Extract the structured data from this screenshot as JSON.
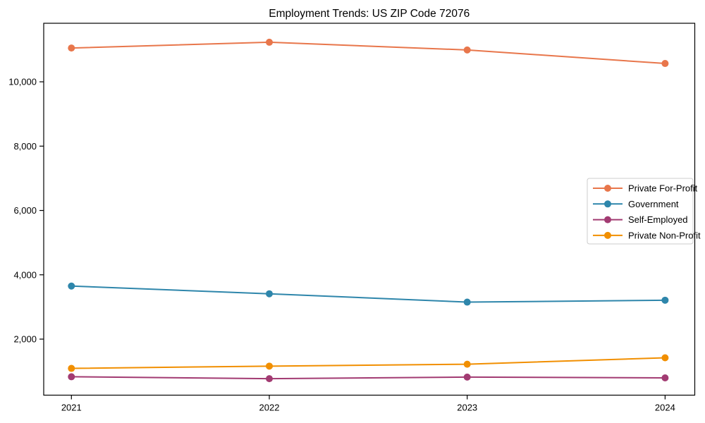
{
  "chart_data": {
    "type": "line",
    "title": "Employment Trends: US ZIP Code 72076",
    "x": [
      2021,
      2022,
      2023,
      2024
    ],
    "xtick_labels": [
      "2021",
      "2022",
      "2023",
      "2024"
    ],
    "yticks": [
      2000,
      4000,
      6000,
      8000,
      10000
    ],
    "ytick_labels": [
      "2,000",
      "4,000",
      "6,000",
      "8,000",
      "10,000"
    ],
    "xlim": [
      2020.86,
      2024.15
    ],
    "ylim": [
      258,
      11820
    ],
    "grid": false,
    "legend_position": "center-right",
    "xlabel": "",
    "ylabel": "",
    "axis_color": "#000000",
    "legend_border_color": "#cccccc",
    "series": [
      {
        "name": "Private For-Profit",
        "color": "#E8764B",
        "values": [
          11050,
          11230,
          10990,
          10570
        ]
      },
      {
        "name": "Government",
        "color": "#2E86AB",
        "values": [
          3650,
          3410,
          3150,
          3210
        ]
      },
      {
        "name": "Self-Employed",
        "color": "#A23B72",
        "values": [
          830,
          770,
          820,
          795
        ]
      },
      {
        "name": "Private Non-Profit",
        "color": "#F18F01",
        "values": [
          1090,
          1160,
          1220,
          1420
        ]
      }
    ]
  }
}
